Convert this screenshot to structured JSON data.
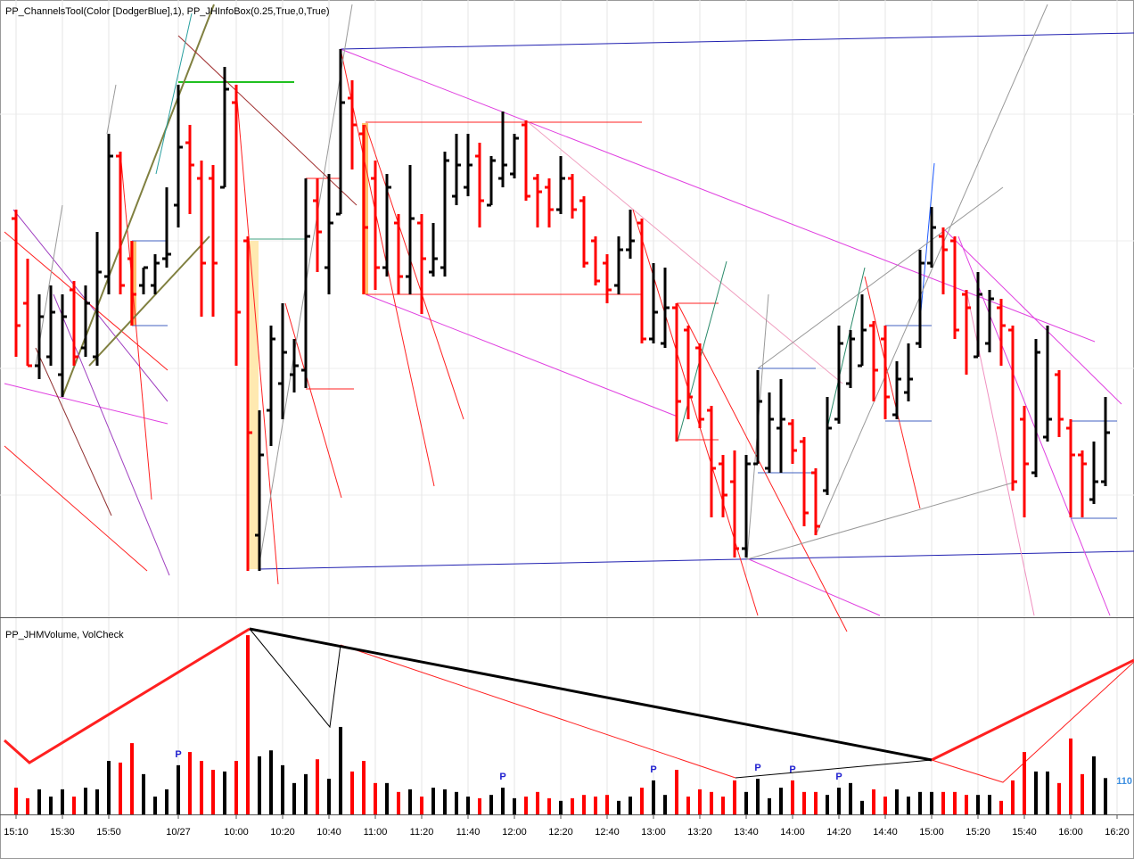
{
  "chart_data": [
    {
      "type": "ohlc",
      "title": "PP_ChannelsTool(Color [DodgerBlue],1), PP_JHInfoBox(0.25,True,0,True)",
      "up_color": "#000000",
      "down_color": "#ff0000",
      "open": [
        445,
        350,
        280,
        290,
        270,
        365,
        300,
        290,
        380,
        515,
        400,
        370,
        370,
        400,
        460,
        530,
        490,
        490,
        480,
        575,
        420,
        90,
        230,
        260,
        270,
        275,
        465,
        390,
        450,
        580,
        540,
        490,
        390,
        440,
        380,
        440,
        385,
        390,
        470,
        480,
        515,
        460,
        490,
        495,
        550,
        490,
        480,
        455,
        490,
        465,
        420,
        395,
        370,
        410,
        440,
        310,
        305,
        345,
        320,
        300,
        230,
        170,
        150,
        75,
        170,
        165,
        210,
        215,
        195,
        160,
        140,
        220,
        260,
        280,
        325,
        310,
        225,
        250,
        305,
        395,
        425,
        420,
        360,
        290,
        305,
        345,
        320,
        220,
        160,
        200,
        270,
        210,
        180,
        130,
        150,
        null
      ],
      "high": [
        455,
        400,
        360,
        370,
        360,
        375,
        370,
        430,
        540,
        520,
        420,
        390,
        405,
        480,
        595,
        550,
        510,
        505,
        615,
        595,
        425,
        230,
        325,
        350,
        310,
        490,
        490,
        495,
        635,
        600,
        550,
        510,
        495,
        450,
        505,
        450,
        440,
        520,
        540,
        540,
        530,
        515,
        565,
        540,
        555,
        495,
        490,
        515,
        495,
        470,
        425,
        405,
        425,
        455,
        445,
        395,
        390,
        350,
        325,
        305,
        235,
        180,
        185,
        180,
        275,
        250,
        265,
        220,
        200,
        165,
        245,
        325,
        320,
        360,
        330,
        325,
        285,
        305,
        410,
        458,
        435,
        425,
        365,
        385,
        365,
        355,
        325,
        235,
        310,
        325,
        275,
        220,
        185,
        195,
        245,
        null
      ],
      "low": [
        290,
        280,
        265,
        280,
        245,
        280,
        290,
        280,
        360,
        360,
        325,
        360,
        360,
        390,
        435,
        450,
        335,
        335,
        480,
        280,
        50,
        50,
        190,
        220,
        250,
        255,
        385,
        360,
        450,
        500,
        360,
        365,
        380,
        360,
        360,
        338,
        380,
        380,
        460,
        470,
        435,
        460,
        480,
        490,
        465,
        435,
        435,
        450,
        445,
        390,
        370,
        350,
        360,
        400,
        305,
        305,
        300,
        195,
        220,
        210,
        110,
        110,
        65,
        65,
        170,
        160,
        160,
        170,
        100,
        90,
        135,
        215,
        255,
        280,
        240,
        220,
        220,
        240,
        300,
        390,
        360,
        310,
        270,
        290,
        295,
        280,
        140,
        110,
        155,
        195,
        200,
        110,
        110,
        125,
        145,
        null
      ],
      "close": [
        325,
        280,
        335,
        340,
        335,
        290,
        350,
        385,
        515,
        370,
        360,
        390,
        395,
        405,
        525,
        505,
        395,
        395,
        590,
        340,
        205,
        180,
        310,
        295,
        280,
        425,
        430,
        440,
        575,
        550,
        435,
        390,
        480,
        380,
        445,
        400,
        400,
        510,
        505,
        505,
        465,
        510,
        505,
        535,
        470,
        475,
        455,
        490,
        455,
        395,
        375,
        365,
        410,
        420,
        310,
        340,
        345,
        240,
        245,
        220,
        165,
        135,
        75,
        170,
        240,
        220,
        220,
        185,
        115,
        100,
        210,
        305,
        310,
        320,
        275,
        245,
        265,
        265,
        395,
        435,
        410,
        320,
        345,
        360,
        355,
        325,
        150,
        170,
        295,
        220,
        220,
        180,
        170,
        150,
        205,
        null
      ]
    },
    {
      "type": "bar",
      "title": "PP_JHMVolume, VolCheck",
      "up_color": "#000000",
      "down_color": "#ff0000",
      "categories": [
        "15:10",
        null,
        null,
        null,
        "15:30",
        null,
        null,
        null,
        "15:50",
        null,
        null,
        null,
        null,
        null,
        "10/27",
        null,
        null,
        null,
        null,
        "10:00",
        null,
        null,
        null,
        "10:20",
        null,
        null,
        null,
        "10:40",
        null,
        null,
        null,
        "11:00",
        null,
        null,
        null,
        "11:20",
        null,
        null,
        null,
        "11:40",
        null,
        null,
        null,
        "12:00",
        null,
        null,
        null,
        "12:20",
        null,
        null,
        null,
        "12:40",
        null,
        null,
        null,
        "13:00",
        null,
        null,
        null,
        "13:20",
        null,
        null,
        null,
        "13:40",
        null,
        null,
        null,
        "14:00",
        null,
        null,
        null,
        "14:20",
        null,
        null,
        null,
        "14:40",
        null,
        null,
        null,
        "15:00",
        null,
        null,
        null,
        "15:20",
        null,
        null,
        null,
        "15:40",
        null,
        null,
        null,
        "16:00",
        null,
        null,
        null,
        "16:20"
      ],
      "values": [
        81,
        49,
        76,
        54,
        76,
        54,
        81,
        76,
        162,
        157,
        216,
        122,
        54,
        76,
        149,
        189,
        162,
        135,
        130,
        162,
        543,
        176,
        194,
        149,
        95,
        122,
        167,
        108,
        265,
        130,
        162,
        95,
        95,
        68,
        76,
        54,
        81,
        76,
        68,
        54,
        49,
        59,
        81,
        49,
        54,
        68,
        49,
        41,
        49,
        59,
        54,
        59,
        41,
        54,
        81,
        103,
        59,
        135,
        54,
        76,
        68,
        54,
        103,
        68,
        108,
        49,
        81,
        103,
        68,
        68,
        59,
        81,
        95,
        41,
        76,
        54,
        76,
        54,
        68,
        68,
        68,
        68,
        59,
        59,
        59,
        41,
        103,
        189,
        130,
        130,
        95,
        230,
        122,
        176,
        110,
        null
      ],
      "flags": [
        null,
        null,
        null,
        null,
        null,
        null,
        null,
        null,
        null,
        null,
        null,
        null,
        null,
        null,
        "P",
        null,
        null,
        null,
        null,
        null,
        null,
        null,
        null,
        null,
        null,
        null,
        null,
        null,
        null,
        null,
        null,
        null,
        null,
        null,
        null,
        null,
        null,
        null,
        null,
        null,
        null,
        null,
        "P",
        null,
        null,
        null,
        null,
        null,
        null,
        null,
        null,
        null,
        null,
        null,
        null,
        "P",
        null,
        null,
        null,
        null,
        null,
        null,
        null,
        null,
        "P",
        null,
        null,
        "P",
        null,
        null,
        null,
        "P",
        null,
        null,
        null,
        null,
        null,
        null,
        null,
        null,
        null,
        null,
        null,
        null,
        null,
        null,
        null,
        null,
        null,
        null,
        null,
        null,
        null,
        null,
        null,
        null
      ],
      "current_value": 110
    }
  ]
}
